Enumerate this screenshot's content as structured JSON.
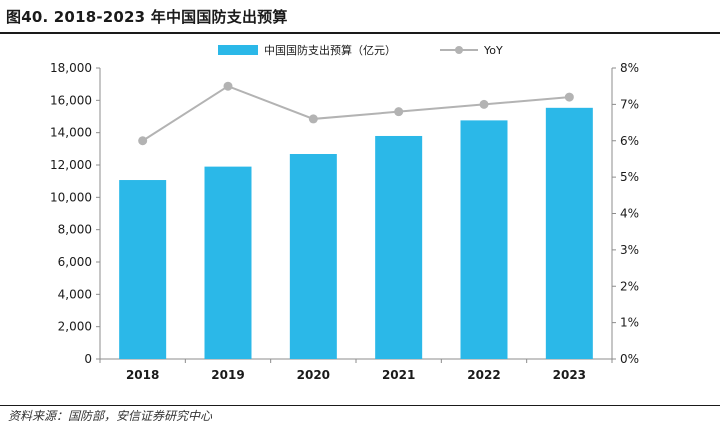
{
  "figure": {
    "title": "图40. 2018-2023 年中国国防支出预算",
    "source": "资料来源：国防部，安信证券研究中心"
  },
  "colors": {
    "bar": "#2bb8e8",
    "line": "#b3b3b3",
    "axis": "#8c8c8c"
  },
  "chart_data": {
    "type": "bar",
    "title": "2018-2023 年中国国防支出预算",
    "categories": [
      "2018",
      "2019",
      "2020",
      "2021",
      "2022",
      "2023"
    ],
    "series": [
      {
        "name": "中国国防支出预算（亿元）",
        "type": "bar",
        "axis": "left",
        "values": [
          11070,
          11900,
          12680,
          13795,
          14760,
          15537
        ]
      },
      {
        "name": "YoY",
        "type": "line",
        "axis": "right",
        "values": [
          0.06,
          0.075,
          0.066,
          0.068,
          0.07,
          0.072
        ]
      }
    ],
    "y_left": {
      "min": 0,
      "max": 18000,
      "step": 2000,
      "tick_labels": [
        "0",
        "2,000",
        "4,000",
        "6,000",
        "8,000",
        "10,000",
        "12,000",
        "14,000",
        "16,000",
        "18,000"
      ]
    },
    "y_right": {
      "min": 0,
      "max": 0.08,
      "step": 0.01,
      "tick_labels": [
        "0%",
        "1%",
        "2%",
        "3%",
        "4%",
        "5%",
        "6%",
        "7%",
        "8%"
      ]
    },
    "legend_position": "top-center",
    "grid": false
  }
}
